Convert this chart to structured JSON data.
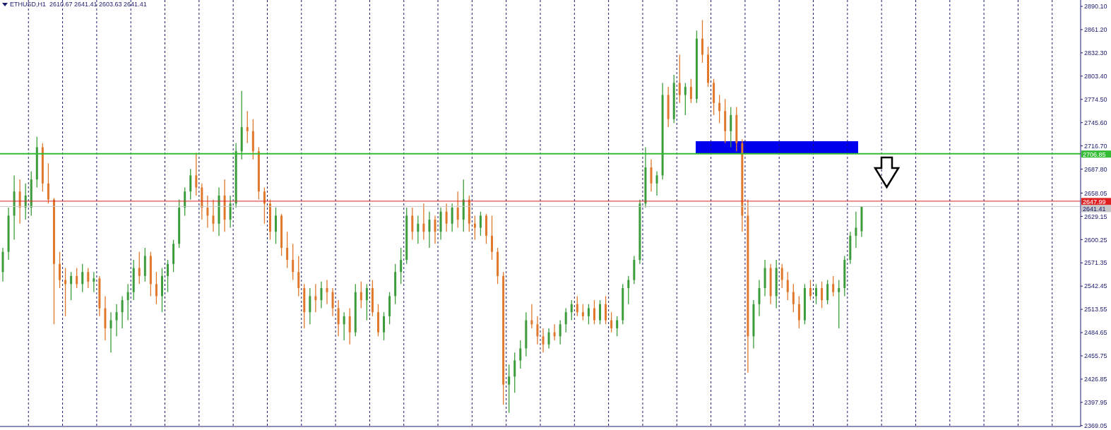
{
  "chart_data": {
    "type": "candlestick",
    "title": "ETHUSD,H1  2610.67 2641.41 2603.63 2641.41",
    "categories": [
      null,
      null,
      null,
      null,
      null,
      null,
      null,
      null,
      null,
      null,
      null,
      null,
      null,
      null,
      null,
      null,
      null,
      null,
      null,
      null,
      null,
      null,
      null,
      null,
      null,
      null,
      null,
      null,
      null,
      null,
      null,
      null,
      null,
      null,
      null,
      null,
      null,
      null,
      null,
      null,
      null,
      null,
      null,
      null,
      null,
      null,
      null,
      null,
      null,
      null,
      null,
      null,
      null,
      null,
      null,
      null,
      null,
      null,
      null,
      null,
      null,
      null,
      null,
      null,
      null,
      null,
      null,
      null,
      null,
      null,
      null,
      null,
      null,
      null,
      null,
      null,
      null,
      null,
      null,
      null,
      null,
      null,
      null,
      null,
      null,
      null,
      null,
      null,
      null,
      null,
      null,
      null,
      null,
      null,
      null,
      null,
      null,
      null,
      null,
      null,
      null,
      null,
      null,
      null,
      null,
      null,
      null,
      null,
      null,
      null,
      null,
      null,
      null,
      null,
      null,
      null,
      null,
      null,
      null,
      null,
      null,
      null,
      null,
      null,
      null,
      null,
      null,
      null,
      null,
      null,
      null,
      null,
      null,
      null,
      null,
      null,
      null,
      null,
      null,
      null,
      null,
      null,
      null,
      null,
      null,
      null,
      null,
      null,
      null,
      null,
      null,
      null,
      null,
      null,
      null,
      null,
      null,
      null,
      null,
      null,
      null,
      null,
      null,
      null,
      null,
      null,
      null,
      null,
      null,
      null,
      null,
      null,
      null,
      null,
      null,
      null,
      null,
      null,
      null,
      null,
      null,
      null,
      null,
      null,
      null,
      null,
      null,
      null,
      null,
      null
    ],
    "ohlc": [
      [
        2560,
        2590,
        2548,
        2585
      ],
      [
        2585,
        2640,
        2575,
        2630
      ],
      [
        2630,
        2680,
        2600,
        2660
      ],
      [
        2660,
        2675,
        2620,
        2640
      ],
      [
        2640,
        2670,
        2625,
        2655
      ],
      [
        2640,
        2685,
        2630,
        2675
      ],
      [
        2675,
        2728,
        2665,
        2715
      ],
      [
        2715,
        2720,
        2660,
        2670
      ],
      [
        2670,
        2695,
        2645,
        2650
      ],
      [
        2650,
        2652,
        2495,
        2570
      ],
      [
        2570,
        2585,
        2540,
        2550
      ],
      [
        2550,
        2565,
        2505,
        2545
      ],
      [
        2545,
        2560,
        2525,
        2555
      ],
      [
        2555,
        2565,
        2540,
        2545
      ],
      [
        2545,
        2570,
        2535,
        2560
      ],
      [
        2560,
        2565,
        2540,
        2548
      ],
      [
        2548,
        2560,
        2535,
        2552
      ],
      [
        2552,
        2555,
        2505,
        2515
      ],
      [
        2515,
        2530,
        2475,
        2490
      ],
      [
        2490,
        2510,
        2460,
        2500
      ],
      [
        2500,
        2520,
        2480,
        2510
      ],
      [
        2510,
        2530,
        2490,
        2525
      ],
      [
        2525,
        2545,
        2500,
        2535
      ],
      [
        2535,
        2575,
        2525,
        2565
      ],
      [
        2565,
        2585,
        2545,
        2555
      ],
      [
        2555,
        2590,
        2548,
        2580
      ],
      [
        2580,
        2585,
        2530,
        2545
      ],
      [
        2545,
        2560,
        2520,
        2530
      ],
      [
        2530,
        2565,
        2510,
        2555
      ],
      [
        2555,
        2575,
        2535,
        2570
      ],
      [
        2570,
        2600,
        2560,
        2595
      ],
      [
        2595,
        2650,
        2590,
        2640
      ],
      [
        2640,
        2665,
        2630,
        2660
      ],
      [
        2660,
        2688,
        2650,
        2680
      ],
      [
        2680,
        2708,
        2655,
        2665
      ],
      [
        2665,
        2670,
        2625,
        2640
      ],
      [
        2640,
        2655,
        2615,
        2630
      ],
      [
        2630,
        2650,
        2610,
        2620
      ],
      [
        2620,
        2665,
        2605,
        2655
      ],
      [
        2655,
        2675,
        2610,
        2625
      ],
      [
        2625,
        2655,
        2615,
        2645
      ],
      [
        2645,
        2720,
        2640,
        2710
      ],
      [
        2710,
        2785,
        2700,
        2740
      ],
      [
        2740,
        2760,
        2720,
        2735
      ],
      [
        2735,
        2750,
        2700,
        2710
      ],
      [
        2710,
        2715,
        2650,
        2660
      ],
      [
        2660,
        2665,
        2620,
        2645
      ],
      [
        2645,
        2650,
        2600,
        2610
      ],
      [
        2610,
        2640,
        2595,
        2630
      ],
      [
        2630,
        2632,
        2580,
        2590
      ],
      [
        2590,
        2610,
        2565,
        2575
      ],
      [
        2575,
        2595,
        2550,
        2560
      ],
      [
        2560,
        2580,
        2530,
        2540
      ],
      [
        2540,
        2545,
        2490,
        2510
      ],
      [
        2510,
        2540,
        2495,
        2530
      ],
      [
        2530,
        2545,
        2510,
        2525
      ],
      [
        2525,
        2548,
        2515,
        2540
      ],
      [
        2540,
        2550,
        2520,
        2535
      ],
      [
        2535,
        2540,
        2505,
        2515
      ],
      [
        2515,
        2525,
        2480,
        2495
      ],
      [
        2495,
        2510,
        2475,
        2505
      ],
      [
        2505,
        2515,
        2470,
        2485
      ],
      [
        2485,
        2545,
        2480,
        2535
      ],
      [
        2535,
        2548,
        2515,
        2525
      ],
      [
        2525,
        2545,
        2500,
        2540
      ],
      [
        2540,
        2550,
        2505,
        2510
      ],
      [
        2510,
        2520,
        2480,
        2485
      ],
      [
        2485,
        2510,
        2475,
        2505
      ],
      [
        2505,
        2535,
        2495,
        2530
      ],
      [
        2530,
        2570,
        2520,
        2560
      ],
      [
        2560,
        2590,
        2545,
        2575
      ],
      [
        2575,
        2640,
        2570,
        2630
      ],
      [
        2630,
        2640,
        2600,
        2610
      ],
      [
        2610,
        2630,
        2595,
        2620
      ],
      [
        2620,
        2645,
        2600,
        2610
      ],
      [
        2610,
        2635,
        2590,
        2625
      ],
      [
        2625,
        2630,
        2595,
        2610
      ],
      [
        2610,
        2640,
        2600,
        2635
      ],
      [
        2635,
        2645,
        2610,
        2620
      ],
      [
        2620,
        2645,
        2610,
        2640
      ],
      [
        2640,
        2660,
        2615,
        2625
      ],
      [
        2625,
        2675,
        2610,
        2650
      ],
      [
        2650,
        2655,
        2610,
        2620
      ],
      [
        2620,
        2630,
        2600,
        2615
      ],
      [
        2615,
        2635,
        2605,
        2630
      ],
      [
        2630,
        2632,
        2595,
        2605
      ],
      [
        2605,
        2630,
        2575,
        2585
      ],
      [
        2585,
        2590,
        2545,
        2555
      ],
      [
        2555,
        2560,
        2395,
        2420
      ],
      [
        2420,
        2445,
        2385,
        2430
      ],
      [
        2430,
        2460,
        2410,
        2450
      ],
      [
        2450,
        2475,
        2440,
        2465
      ],
      [
        2465,
        2510,
        2455,
        2500
      ],
      [
        2500,
        2520,
        2490,
        2495
      ],
      [
        2495,
        2505,
        2470,
        2480
      ],
      [
        2480,
        2490,
        2460,
        2470
      ],
      [
        2470,
        2490,
        2465,
        2485
      ],
      [
        2485,
        2495,
        2475,
        2480
      ],
      [
        2480,
        2500,
        2470,
        2495
      ],
      [
        2495,
        2515,
        2485,
        2510
      ],
      [
        2510,
        2525,
        2500,
        2520
      ],
      [
        2520,
        2530,
        2505,
        2510
      ],
      [
        2510,
        2520,
        2500,
        2505
      ],
      [
        2505,
        2520,
        2495,
        2515
      ],
      [
        2515,
        2525,
        2495,
        2500
      ],
      [
        2500,
        2525,
        2495,
        2520
      ],
      [
        2520,
        2530,
        2495,
        2500
      ],
      [
        2500,
        2510,
        2485,
        2490
      ],
      [
        2490,
        2505,
        2480,
        2500
      ],
      [
        2500,
        2545,
        2495,
        2540
      ],
      [
        2540,
        2555,
        2520,
        2550
      ],
      [
        2550,
        2580,
        2545,
        2575
      ],
      [
        2575,
        2650,
        2570,
        2645
      ],
      [
        2645,
        2715,
        2640,
        2690
      ],
      [
        2690,
        2700,
        2660,
        2670
      ],
      [
        2670,
        2685,
        2655,
        2680
      ],
      [
        2680,
        2795,
        2675,
        2780
      ],
      [
        2780,
        2790,
        2740,
        2750
      ],
      [
        2750,
        2805,
        2745,
        2795
      ],
      [
        2795,
        2830,
        2770,
        2780
      ],
      [
        2780,
        2795,
        2755,
        2790
      ],
      [
        2790,
        2800,
        2770,
        2775
      ],
      [
        2775,
        2860,
        2770,
        2850
      ],
      [
        2850,
        2873,
        2820,
        2830
      ],
      [
        2830,
        2840,
        2790,
        2795
      ],
      [
        2795,
        2800,
        2755,
        2770
      ],
      [
        2770,
        2780,
        2745,
        2760
      ],
      [
        2760,
        2775,
        2720,
        2735
      ],
      [
        2735,
        2765,
        2715,
        2755
      ],
      [
        2755,
        2765,
        2710,
        2720
      ],
      [
        2720,
        2725,
        2610,
        2630
      ],
      [
        2630,
        2650,
        2435,
        2480
      ],
      [
        2480,
        2525,
        2465,
        2520
      ],
      [
        2520,
        2550,
        2505,
        2540
      ],
      [
        2540,
        2575,
        2530,
        2565
      ],
      [
        2565,
        2570,
        2520,
        2530
      ],
      [
        2530,
        2575,
        2515,
        2565
      ],
      [
        2565,
        2570,
        2540,
        2550
      ],
      [
        2550,
        2560,
        2525,
        2535
      ],
      [
        2535,
        2545,
        2510,
        2520
      ],
      [
        2520,
        2530,
        2490,
        2500
      ],
      [
        2500,
        2545,
        2495,
        2540
      ],
      [
        2540,
        2550,
        2525,
        2530
      ],
      [
        2530,
        2545,
        2520,
        2540
      ],
      [
        2540,
        2548,
        2515,
        2525
      ],
      [
        2525,
        2550,
        2520,
        2545
      ],
      [
        2545,
        2555,
        2530,
        2535
      ],
      [
        2535,
        2550,
        2490,
        2540
      ],
      [
        2540,
        2580,
        2530,
        2575
      ],
      [
        2575,
        2610,
        2570,
        2605
      ],
      [
        2605,
        2635,
        2590,
        2615
      ],
      [
        2610.67,
        2641.41,
        2603.63,
        2641.41
      ],
      null,
      null,
      null,
      null,
      null,
      null,
      null,
      null,
      null,
      null,
      null,
      null,
      null,
      null,
      null,
      null,
      null,
      null,
      null,
      null,
      null,
      null,
      null,
      null,
      null,
      null,
      null,
      null,
      null,
      null,
      null,
      null,
      null,
      null,
      null,
      null,
      null,
      null
    ],
    "colors": [
      "#3c9c3c",
      "#3c9c3c",
      "#3c9c3c",
      "#e0782c",
      "#3c9c3c",
      "#3c9c3c",
      "#3c9c3c",
      "#e0782c",
      "#e0782c",
      "#e0782c",
      "#e0782c",
      "#e0782c",
      "#3c9c3c",
      "#e0782c",
      "#3c9c3c",
      "#e0782c",
      "#3c9c3c",
      "#e0782c",
      "#e0782c",
      "#3c9c3c",
      "#3c9c3c",
      "#3c9c3c",
      "#3c9c3c",
      "#3c9c3c",
      "#e0782c",
      "#3c9c3c",
      "#e0782c",
      "#e0782c",
      "#3c9c3c",
      "#3c9c3c",
      "#3c9c3c",
      "#3c9c3c",
      "#3c9c3c",
      "#3c9c3c",
      "#e0782c",
      "#e0782c",
      "#e0782c",
      "#e0782c",
      "#3c9c3c",
      "#e0782c",
      "#3c9c3c",
      "#3c9c3c",
      "#3c9c3c",
      "#e0782c",
      "#e0782c",
      "#e0782c",
      "#e0782c",
      "#e0782c",
      "#3c9c3c",
      "#e0782c",
      "#e0782c",
      "#e0782c",
      "#e0782c",
      "#e0782c",
      "#3c9c3c",
      "#e0782c",
      "#3c9c3c",
      "#e0782c",
      "#e0782c",
      "#e0782c",
      "#3c9c3c",
      "#e0782c",
      "#3c9c3c",
      "#e0782c",
      "#3c9c3c",
      "#e0782c",
      "#e0782c",
      "#3c9c3c",
      "#3c9c3c",
      "#3c9c3c",
      "#3c9c3c",
      "#3c9c3c",
      "#e0782c",
      "#3c9c3c",
      "#e0782c",
      "#3c9c3c",
      "#e0782c",
      "#3c9c3c",
      "#e0782c",
      "#3c9c3c",
      "#e0782c",
      "#3c9c3c",
      "#e0782c",
      "#e0782c",
      "#3c9c3c",
      "#e0782c",
      "#e0782c",
      "#e0782c",
      "#e0782c",
      "#3c9c3c",
      "#3c9c3c",
      "#3c9c3c",
      "#3c9c3c",
      "#e0782c",
      "#e0782c",
      "#e0782c",
      "#3c9c3c",
      "#e0782c",
      "#3c9c3c",
      "#3c9c3c",
      "#3c9c3c",
      "#e0782c",
      "#e0782c",
      "#3c9c3c",
      "#e0782c",
      "#3c9c3c",
      "#e0782c",
      "#e0782c",
      "#3c9c3c",
      "#3c9c3c",
      "#3c9c3c",
      "#3c9c3c",
      "#3c9c3c",
      "#3c9c3c",
      "#e0782c",
      "#3c9c3c",
      "#3c9c3c",
      "#e0782c",
      "#3c9c3c",
      "#e0782c",
      "#3c9c3c",
      "#e0782c",
      "#3c9c3c",
      "#e0782c",
      "#e0782c",
      "#e0782c",
      "#e0782c",
      "#e0782c",
      "#3c9c3c",
      "#e0782c",
      "#e0782c",
      "#e0782c",
      "#3c9c3c",
      "#3c9c3c",
      "#3c9c3c",
      "#e0782c",
      "#3c9c3c",
      "#e0782c",
      "#e0782c",
      "#e0782c",
      "#e0782c",
      "#3c9c3c",
      "#e0782c",
      "#3c9c3c",
      "#e0782c",
      "#3c9c3c",
      "#e0782c",
      "#3c9c3c",
      "#3c9c3c",
      "#3c9c3c",
      "#3c9c3c",
      "#3c9c3c",
      null,
      null,
      null,
      null,
      null,
      null,
      null,
      null,
      null,
      null,
      null,
      null,
      null,
      null,
      null,
      null,
      null,
      null,
      null,
      null,
      null,
      null,
      null,
      null,
      null,
      null,
      null,
      null,
      null,
      null,
      null,
      null,
      null,
      null,
      null,
      null,
      null,
      null
    ],
    "ylim": [
      2368,
      2898
    ],
    "yticks": [
      2369.05,
      2397.95,
      2426.85,
      2455.75,
      2484.65,
      2513.55,
      2542.45,
      2571.35,
      2600.25,
      2629.15,
      2658.05,
      {
        "value": 2687.8,
        "label": "2687.80"
      },
      {
        "value": 2716.7,
        "label": "2716.70"
      },
      {
        "value": 2745.6,
        "label": "2745.60"
      },
      {
        "value": 2774.5,
        "label": "2774.50"
      },
      {
        "value": 2803.4,
        "label": "2803.40"
      },
      {
        "value": 2832.3,
        "label": "2832.30"
      },
      {
        "value": 2861.2,
        "label": "2861.20"
      },
      {
        "value": 2890.1,
        "label": "2890.10"
      }
    ],
    "ref_lines": [
      {
        "axis": "y",
        "value": 2706.85,
        "label": "2706.85",
        "color": "#33bb33"
      },
      {
        "axis": "y",
        "value": 2647.99,
        "label": "2647.99",
        "color": "#e02020"
      },
      {
        "axis": "y",
        "value": 2641.41,
        "label": "2641.41",
        "color": "#c8c8c8"
      }
    ],
    "grid": "x"
  }
}
